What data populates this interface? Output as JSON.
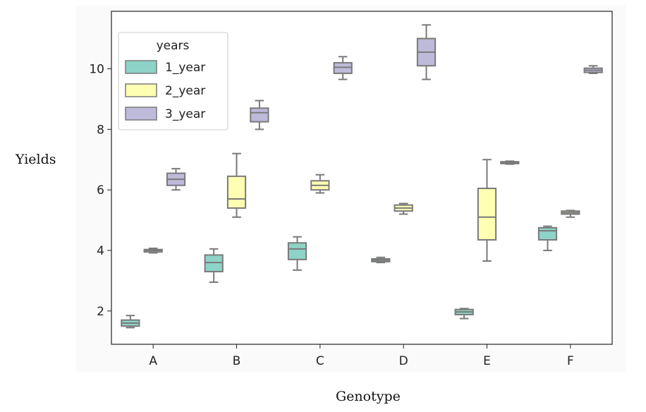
{
  "chart_data": {
    "type": "box",
    "title": "",
    "xlabel": "Genotype",
    "ylabel": "Yields",
    "categories": [
      "A",
      "B",
      "C",
      "D",
      "E",
      "F"
    ],
    "ylim": [
      0.9,
      11.9
    ],
    "yticks": [
      2,
      4,
      6,
      8,
      10
    ],
    "legend": {
      "title": "years",
      "position": "top-left"
    },
    "series": [
      {
        "name": "1_year",
        "color": "#8dd3c7",
        "boxes": [
          {
            "whisker_low": 1.45,
            "q1": 1.5,
            "median": 1.6,
            "q3": 1.7,
            "whisker_high": 1.85
          },
          {
            "whisker_low": 2.95,
            "q1": 3.3,
            "median": 3.6,
            "q3": 3.85,
            "whisker_high": 4.05
          },
          {
            "whisker_low": 3.35,
            "q1": 3.7,
            "median": 4.05,
            "q3": 4.25,
            "whisker_high": 4.45
          },
          {
            "whisker_low": 3.6,
            "q1": 3.63,
            "median": 3.68,
            "q3": 3.72,
            "whisker_high": 3.77
          },
          {
            "whisker_low": 1.75,
            "q1": 1.88,
            "median": 1.97,
            "q3": 2.05,
            "whisker_high": 2.08
          },
          {
            "whisker_low": 4.0,
            "q1": 4.35,
            "median": 4.65,
            "q3": 4.75,
            "whisker_high": 4.8
          }
        ]
      },
      {
        "name": "2_year",
        "color": "#ffffb3",
        "boxes": [
          {
            "whisker_low": 3.92,
            "q1": 3.95,
            "median": 4.0,
            "q3": 4.03,
            "whisker_high": 4.07
          },
          {
            "whisker_low": 5.1,
            "q1": 5.4,
            "median": 5.7,
            "q3": 6.45,
            "whisker_high": 7.2
          },
          {
            "whisker_low": 5.9,
            "q1": 6.0,
            "median": 6.15,
            "q3": 6.3,
            "whisker_high": 6.5
          },
          {
            "whisker_low": 5.2,
            "q1": 5.3,
            "median": 5.4,
            "q3": 5.5,
            "whisker_high": 5.55
          },
          {
            "whisker_low": 3.65,
            "q1": 4.35,
            "median": 5.1,
            "q3": 6.05,
            "whisker_high": 7.0
          },
          {
            "whisker_low": 5.1,
            "q1": 5.2,
            "median": 5.25,
            "q3": 5.3,
            "whisker_high": 5.32
          }
        ]
      },
      {
        "name": "3_year",
        "color": "#bebada",
        "boxes": [
          {
            "whisker_low": 6.0,
            "q1": 6.15,
            "median": 6.35,
            "q3": 6.55,
            "whisker_high": 6.7
          },
          {
            "whisker_low": 8.0,
            "q1": 8.25,
            "median": 8.55,
            "q3": 8.7,
            "whisker_high": 8.95
          },
          {
            "whisker_low": 9.65,
            "q1": 9.85,
            "median": 10.05,
            "q3": 10.2,
            "whisker_high": 10.4
          },
          {
            "whisker_low": 9.65,
            "q1": 10.1,
            "median": 10.55,
            "q3": 11.0,
            "whisker_high": 11.45
          },
          {
            "whisker_low": 6.85,
            "q1": 6.87,
            "median": 6.9,
            "q3": 6.93,
            "whisker_high": 6.95
          },
          {
            "whisker_low": 9.85,
            "q1": 9.88,
            "median": 9.95,
            "q3": 10.02,
            "whisker_high": 10.1
          }
        ]
      }
    ]
  }
}
